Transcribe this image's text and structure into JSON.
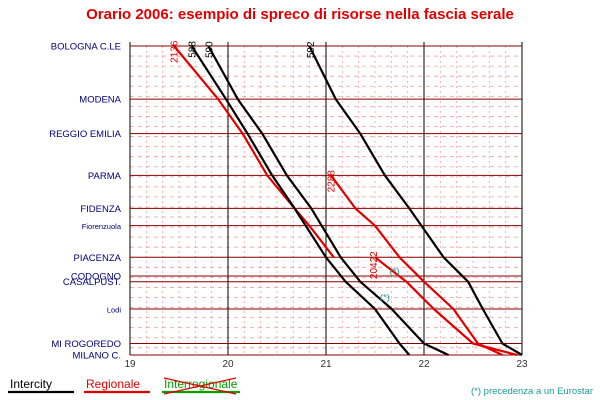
{
  "chart_data": {
    "type": "line",
    "title": "Orario 2006: esempio di spreco di risorse nella fascia serale",
    "x_axis": {
      "range_hours": [
        19,
        23
      ],
      "ticks": [
        "19",
        "20",
        "21",
        "22",
        "23"
      ]
    },
    "stations": [
      {
        "name": "BOLOGNA C.LE",
        "km": 0,
        "minor": false
      },
      {
        "name": "MODENA",
        "km": 37,
        "minor": false
      },
      {
        "name": "REGGIO EMILIA",
        "km": 61,
        "minor": false
      },
      {
        "name": "PARMA",
        "km": 90,
        "minor": false
      },
      {
        "name": "FIDENZA",
        "km": 113,
        "minor": false
      },
      {
        "name": "Fiorenzuola",
        "km": 125,
        "minor": true
      },
      {
        "name": "PIACENZA",
        "km": 147,
        "minor": false
      },
      {
        "name": "CODOGNO",
        "km": 160,
        "minor": false
      },
      {
        "name": "CASALPUST.",
        "km": 164,
        "minor": false
      },
      {
        "name": "Lodi",
        "km": 183,
        "minor": true
      },
      {
        "name": "MI ROGOREDO",
        "km": 207,
        "minor": false
      },
      {
        "name": "MILANO C.",
        "km": 215,
        "minor": false
      }
    ],
    "series": [
      {
        "name": "2136",
        "category": "Regionale",
        "color": "#e00000",
        "points": [
          [
            19.45,
            0
          ],
          [
            19.9,
            37
          ],
          [
            20.15,
            61
          ],
          [
            20.4,
            90
          ],
          [
            20.68,
            113
          ],
          [
            20.83,
            125
          ],
          [
            21.08,
            147
          ]
        ]
      },
      {
        "name": "588",
        "category": "Intercity",
        "color": "#000000",
        "points": [
          [
            19.63,
            0
          ],
          [
            19.98,
            37
          ],
          [
            20.2,
            61
          ],
          [
            20.45,
            90
          ],
          [
            20.68,
            113
          ],
          [
            21.0,
            147
          ],
          [
            21.2,
            164
          ],
          [
            21.5,
            183
          ],
          [
            21.75,
            207
          ],
          [
            21.85,
            215
          ]
        ]
      },
      {
        "name": "590",
        "category": "Intercity",
        "color": "#000000",
        "points": [
          [
            19.8,
            0
          ],
          [
            20.1,
            37
          ],
          [
            20.35,
            61
          ],
          [
            20.6,
            90
          ],
          [
            20.85,
            113
          ],
          [
            21.15,
            147
          ],
          [
            21.35,
            164
          ],
          [
            21.67,
            183
          ],
          [
            22.0,
            207
          ],
          [
            22.25,
            215
          ]
        ]
      },
      {
        "name": "592",
        "category": "Intercity",
        "color": "#000000",
        "points": [
          [
            20.83,
            0
          ],
          [
            21.1,
            37
          ],
          [
            21.35,
            61
          ],
          [
            21.6,
            90
          ],
          [
            21.85,
            113
          ],
          [
            22.2,
            147
          ],
          [
            22.45,
            164
          ],
          [
            22.6,
            183
          ],
          [
            22.8,
            207
          ],
          [
            23.0,
            215
          ]
        ]
      },
      {
        "name": "2288",
        "category": "Regionale",
        "color": "#e00000",
        "points": [
          [
            21.05,
            90
          ],
          [
            21.3,
            113
          ],
          [
            21.5,
            125
          ],
          [
            21.75,
            147
          ],
          [
            22.0,
            164
          ],
          [
            22.3,
            183
          ],
          [
            22.55,
            207
          ],
          [
            22.8,
            215
          ]
        ]
      },
      {
        "name": "20422",
        "category": "Regionale",
        "color": "#e00000",
        "points": [
          [
            21.5,
            147
          ],
          [
            21.82,
            164
          ],
          [
            22.1,
            183
          ],
          [
            22.5,
            207
          ],
          [
            22.95,
            215
          ]
        ]
      }
    ],
    "annotations": [
      {
        "text": "(*)",
        "x": 21.7,
        "km": 159
      },
      {
        "text": "(*)",
        "x": 21.6,
        "km": 177
      }
    ],
    "legend": {
      "placement": "bottom",
      "items": [
        {
          "label": "Intercity",
          "color": "#000000",
          "crossed": false
        },
        {
          "label": "Regionale",
          "color": "#e00000",
          "crossed": false
        },
        {
          "label": "Interregionale",
          "color": "#00a000",
          "crossed": true
        }
      ],
      "note": "(*) precedenza a un Eurostar"
    },
    "colors": {
      "grid_hour": "#000000",
      "grid_minor": "#f2a0a0",
      "station_line": "#8a0000",
      "annotation": "#1a9a9a"
    }
  }
}
